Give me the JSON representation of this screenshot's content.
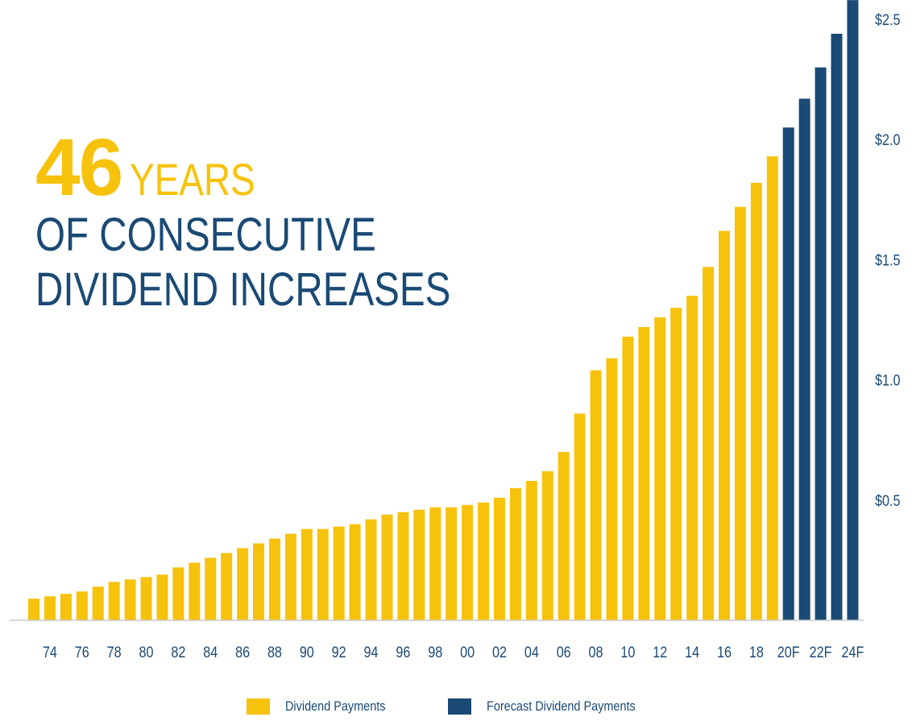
{
  "headline": {
    "number": "46",
    "years": "YEARS",
    "line1": "OF CONSECUTIVE",
    "line2": "DIVIDEND INCREASES"
  },
  "colors": {
    "actual": "#f7c20c",
    "forecast": "#1a4a75",
    "axis_text": "#1a4a75",
    "baseline": "#c8c8c8"
  },
  "legend": [
    {
      "label": "Dividend Payments",
      "color": "#f7c20c"
    },
    {
      "label": "Forecast Dividend Payments",
      "color": "#1a4a75"
    }
  ],
  "chart_data": {
    "type": "bar",
    "title": "",
    "xlabel": "",
    "ylabel": "",
    "ylim": [
      0,
      2.5
    ],
    "y_ticks": [
      "$0.5",
      "$1.0",
      "$1.5",
      "$2.0",
      "$2.5"
    ],
    "y_tick_values": [
      0.5,
      1.0,
      1.5,
      2.0,
      2.5
    ],
    "y_axis_position": "right",
    "grid": false,
    "legend_position": "bottom-center",
    "categories": [
      "73",
      "74",
      "75",
      "76",
      "77",
      "78",
      "79",
      "80",
      "81",
      "82",
      "83",
      "84",
      "85",
      "86",
      "87",
      "88",
      "89",
      "90",
      "91",
      "92",
      "93",
      "94",
      "95",
      "96",
      "97",
      "98",
      "99",
      "00",
      "01",
      "02",
      "03",
      "04",
      "05",
      "06",
      "07",
      "08",
      "09",
      "10",
      "11",
      "12",
      "13",
      "14",
      "15",
      "16",
      "17",
      "18",
      "19",
      "20F",
      "21F",
      "22F",
      "23F",
      "24F"
    ],
    "x_tick_labels": [
      "74",
      "76",
      "78",
      "80",
      "82",
      "84",
      "86",
      "88",
      "90",
      "92",
      "94",
      "96",
      "98",
      "00",
      "02",
      "04",
      "06",
      "08",
      "10",
      "12",
      "14",
      "16",
      "18",
      "20F",
      "22F",
      "24F"
    ],
    "series": [
      {
        "name": "Dividend Payments",
        "values": [
          0.09,
          0.1,
          0.11,
          0.12,
          0.14,
          0.16,
          0.17,
          0.18,
          0.19,
          0.22,
          0.24,
          0.26,
          0.28,
          0.3,
          0.32,
          0.34,
          0.36,
          0.38,
          0.38,
          0.39,
          0.4,
          0.42,
          0.44,
          0.45,
          0.46,
          0.47,
          0.47,
          0.48,
          0.49,
          0.51,
          0.55,
          0.58,
          0.62,
          0.7,
          0.86,
          1.04,
          1.09,
          1.18,
          1.22,
          1.26,
          1.3,
          1.35,
          1.47,
          1.62,
          1.72,
          1.82,
          1.93,
          null,
          null,
          null,
          null,
          null
        ]
      },
      {
        "name": "Forecast Dividend Payments",
        "values": [
          null,
          null,
          null,
          null,
          null,
          null,
          null,
          null,
          null,
          null,
          null,
          null,
          null,
          null,
          null,
          null,
          null,
          null,
          null,
          null,
          null,
          null,
          null,
          null,
          null,
          null,
          null,
          null,
          null,
          null,
          null,
          null,
          null,
          null,
          null,
          null,
          null,
          null,
          null,
          null,
          null,
          null,
          null,
          null,
          null,
          null,
          null,
          2.05,
          2.17,
          2.3,
          2.44,
          2.58
        ]
      }
    ]
  }
}
